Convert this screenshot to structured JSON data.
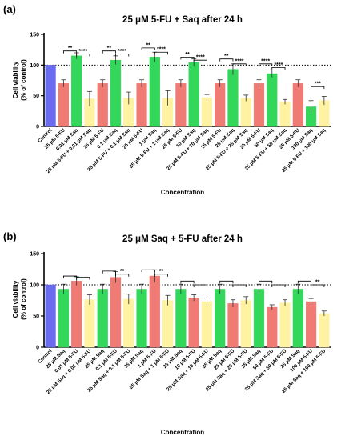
{
  "chart_data": [
    {
      "type": "bar",
      "panel_label": "(a)",
      "title": "25 μM 5-FU + Saq after 24 h",
      "xlabel": "Concentration",
      "ylabel_line1": "Cell viability",
      "ylabel_line2": "(% of control)",
      "ylim": [
        0,
        150
      ],
      "yticks": [
        "0",
        "50",
        "100",
        "150"
      ],
      "reference_line": 100,
      "categories": [
        "Control",
        "25 μM 5-FU",
        "0.01 μM Saq",
        "25 μM 5-FU + 0.01 μM Saq",
        "25 μM 5-FU",
        "0.1 μM Saq",
        "25 μM 5-FU + 0.1 μM Saq",
        "25 μM 5-FU",
        "1 μM Saq",
        "25 μM 5-FU + 1 μM Saq",
        "25 μM 5-FU",
        "10 μM Saq",
        "25 μM 5-FU + 10 μM Saq",
        "25 μM 5-FU",
        "25 μM Saq",
        "25 μM 5-FU + 25 μM Saq",
        "25 μM 5-FU",
        "50 μM Saq",
        "25 μM 5-FU + 50 μM Saq",
        "25 μM 5-FU",
        "100 μM Saq",
        "25 μM 5-FU + 100 μM Saq"
      ],
      "values": [
        100,
        70,
        115,
        45,
        70,
        108,
        46,
        70,
        113,
        46,
        70,
        104,
        47,
        70,
        93,
        46,
        70,
        86,
        40,
        70,
        32,
        42
      ],
      "errors": [
        0,
        6,
        5,
        12,
        6,
        7,
        10,
        6,
        8,
        12,
        6,
        6,
        5,
        6,
        9,
        5,
        6,
        6,
        4,
        6,
        10,
        7
      ],
      "colors": [
        "#6b6bf0",
        "#ef7b74",
        "#33d75a",
        "#fff2a1",
        "#ef7b74",
        "#33d75a",
        "#fff2a1",
        "#ef7b74",
        "#33d75a",
        "#fff2a1",
        "#ef7b74",
        "#33d75a",
        "#fff2a1",
        "#ef7b74",
        "#33d75a",
        "#fff2a1",
        "#ef7b74",
        "#33d75a",
        "#fff2a1",
        "#ef7b74",
        "#33d75a",
        "#fff2a1"
      ],
      "significance": [
        {
          "from": 1,
          "to": 2,
          "y": 123,
          "label": "**"
        },
        {
          "from": 2,
          "to": 3,
          "y": 118,
          "label": "****"
        },
        {
          "from": 4,
          "to": 5,
          "y": 123,
          "label": "**"
        },
        {
          "from": 5,
          "to": 6,
          "y": 118,
          "label": "****"
        },
        {
          "from": 7,
          "to": 8,
          "y": 128,
          "label": "**"
        },
        {
          "from": 8,
          "to": 9,
          "y": 121,
          "label": "****"
        },
        {
          "from": 10,
          "to": 11,
          "y": 113,
          "label": "**"
        },
        {
          "from": 11,
          "to": 12,
          "y": 108,
          "label": "****"
        },
        {
          "from": 13,
          "to": 14,
          "y": 110,
          "label": "**"
        },
        {
          "from": 14,
          "to": 15,
          "y": 102,
          "label": "****"
        },
        {
          "from": 16,
          "to": 17,
          "y": 102,
          "label": "****"
        },
        {
          "from": 17,
          "to": 18,
          "y": 96,
          "label": "****"
        },
        {
          "from": 20,
          "to": 21,
          "y": 65,
          "label": "***"
        }
      ]
    },
    {
      "type": "bar",
      "panel_label": "(b)",
      "title": "25 μM Saq + 5-FU after 24 h",
      "xlabel": "Concentration",
      "ylabel_line1": "Cell viability",
      "ylabel_line2": "(% of control)",
      "ylim": [
        0,
        150
      ],
      "yticks": [
        "0",
        "50",
        "100",
        "150"
      ],
      "reference_line": 100,
      "categories": [
        "Control",
        "25 μM Saq",
        "0.01 μM 5-FU",
        "25 μM Saq + 0.01 μM 5-FU",
        "25 μM Saq",
        "0.1 μM 5-FU",
        "25 μM Saq + 0.1 μM 5-FU",
        "25 μM Saq",
        "1 μM 5-FU",
        "25 μM Saq + 1 μM 5-FU",
        "25 μM Saq",
        "10 μM 5-FU",
        "25 μM Saq + 10 μM 5-FU",
        "25 μM Saq",
        "25 μM 5-FU",
        "25 μM Saq + 25 μM 5-FU",
        "25 μM Saq",
        "50 μM 5-FU",
        "25 μM Saq + 50 μM 5-FU",
        "25 μM Saq",
        "100 μM 5-FU",
        "25 μM Saq + 100 μM 5-FU"
      ],
      "values": [
        100,
        93,
        106,
        76,
        93,
        112,
        77,
        93,
        114,
        75,
        93,
        79,
        73,
        93,
        70,
        75,
        93,
        64,
        71,
        93,
        73,
        54
      ],
      "errors": [
        0,
        8,
        7,
        8,
        8,
        9,
        8,
        8,
        10,
        8,
        8,
        5,
        6,
        8,
        6,
        6,
        8,
        4,
        5,
        8,
        5,
        4
      ],
      "colors": [
        "#6b6bf0",
        "#33d75a",
        "#ef7b74",
        "#fff2a1",
        "#33d75a",
        "#ef7b74",
        "#fff2a1",
        "#33d75a",
        "#ef7b74",
        "#fff2a1",
        "#33d75a",
        "#ef7b74",
        "#fff2a1",
        "#33d75a",
        "#ef7b74",
        "#fff2a1",
        "#33d75a",
        "#ef7b74",
        "#fff2a1",
        "#33d75a",
        "#ef7b74",
        "#fff2a1"
      ],
      "significance": [
        {
          "from": 1,
          "to": 2,
          "y": 114,
          "label": ""
        },
        {
          "from": 2,
          "to": 3,
          "y": 112,
          "label": ""
        },
        {
          "from": 4,
          "to": 5,
          "y": 122,
          "label": ""
        },
        {
          "from": 5,
          "to": 6,
          "y": 117,
          "label": "**"
        },
        {
          "from": 7,
          "to": 8,
          "y": 124,
          "label": ""
        },
        {
          "from": 8,
          "to": 9,
          "y": 117,
          "label": "**"
        },
        {
          "from": 10,
          "to": 11,
          "y": 106,
          "label": ""
        },
        {
          "from": 11,
          "to": 12,
          "y": 100,
          "label": ""
        },
        {
          "from": 13,
          "to": 14,
          "y": 106,
          "label": ""
        },
        {
          "from": 14,
          "to": 15,
          "y": 100,
          "label": ""
        },
        {
          "from": 16,
          "to": 17,
          "y": 106,
          "label": ""
        },
        {
          "from": 17,
          "to": 18,
          "y": 100,
          "label": ""
        },
        {
          "from": 19,
          "to": 20,
          "y": 106,
          "label": ""
        },
        {
          "from": 20,
          "to": 21,
          "y": 100,
          "label": "**"
        }
      ]
    }
  ]
}
